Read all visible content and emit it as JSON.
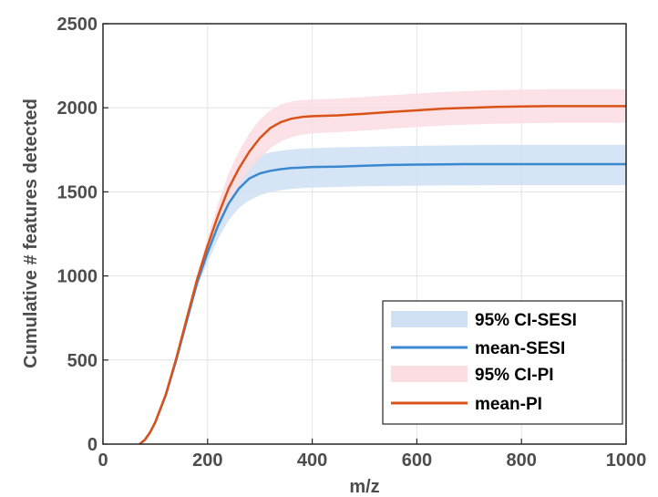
{
  "chart_data": {
    "type": "line",
    "title": "",
    "xlabel": "m/z",
    "ylabel": "Cumulative # features detected",
    "xlim": [
      0,
      1000
    ],
    "ylim": [
      0,
      2500
    ],
    "xticks": [
      "0",
      "200",
      "400",
      "600",
      "800",
      "1000"
    ],
    "yticks": [
      "0",
      "500",
      "1000",
      "1500",
      "2000",
      "2500"
    ],
    "grid": true,
    "legend_position": "bottom-right",
    "x": [
      70,
      80,
      90,
      100,
      120,
      140,
      160,
      180,
      200,
      220,
      240,
      260,
      280,
      300,
      320,
      340,
      360,
      380,
      400,
      450,
      500,
      550,
      600,
      650,
      700,
      750,
      800,
      850,
      900,
      950,
      1000
    ],
    "series": [
      {
        "name": "mean-SESI",
        "kind": "line",
        "color": "#3a88d0",
        "values": [
          0,
          25,
          70,
          130,
          290,
          500,
          730,
          960,
          1140,
          1300,
          1430,
          1520,
          1580,
          1610,
          1625,
          1635,
          1642,
          1645,
          1648,
          1650,
          1655,
          1660,
          1662,
          1664,
          1665,
          1665,
          1665,
          1665,
          1665,
          1665,
          1665
        ]
      },
      {
        "name": "95% CI-SESI",
        "kind": "band",
        "color": "#cfe0f4",
        "lower": [
          0,
          20,
          60,
          120,
          280,
          490,
          715,
          930,
          1080,
          1220,
          1330,
          1405,
          1450,
          1480,
          1500,
          1510,
          1518,
          1522,
          1525,
          1530,
          1533,
          1535,
          1537,
          1538,
          1539,
          1540,
          1540,
          1540,
          1540,
          1540,
          1540
        ],
        "upper": [
          0,
          30,
          80,
          140,
          300,
          510,
          745,
          985,
          1200,
          1380,
          1530,
          1630,
          1690,
          1720,
          1735,
          1745,
          1752,
          1757,
          1760,
          1765,
          1768,
          1771,
          1774,
          1776,
          1778,
          1780,
          1780,
          1780,
          1780,
          1780,
          1780
        ]
      },
      {
        "name": "mean-PI",
        "kind": "line",
        "color": "#d95319",
        "values": [
          0,
          25,
          70,
          130,
          295,
          510,
          745,
          980,
          1180,
          1360,
          1520,
          1640,
          1740,
          1820,
          1880,
          1915,
          1935,
          1945,
          1950,
          1955,
          1965,
          1975,
          1985,
          1995,
          2000,
          2005,
          2008,
          2010,
          2010,
          2010,
          2010
        ]
      },
      {
        "name": "95% CI-PI",
        "kind": "band",
        "color": "#fbdde2",
        "lower": [
          0,
          20,
          60,
          120,
          285,
          495,
          725,
          950,
          1130,
          1290,
          1430,
          1540,
          1630,
          1700,
          1760,
          1800,
          1825,
          1840,
          1848,
          1855,
          1865,
          1875,
          1885,
          1895,
          1900,
          1905,
          1908,
          1910,
          1910,
          1910,
          1910
        ],
        "upper": [
          0,
          30,
          80,
          140,
          305,
          525,
          765,
          1010,
          1230,
          1430,
          1610,
          1740,
          1850,
          1930,
          1985,
          2020,
          2038,
          2045,
          2050,
          2055,
          2065,
          2075,
          2085,
          2095,
          2100,
          2105,
          2108,
          2110,
          2110,
          2110,
          2110
        ]
      }
    ],
    "legend": [
      "95% CI-SESI",
      "mean-SESI",
      "95% CI-PI",
      "mean-PI"
    ]
  }
}
